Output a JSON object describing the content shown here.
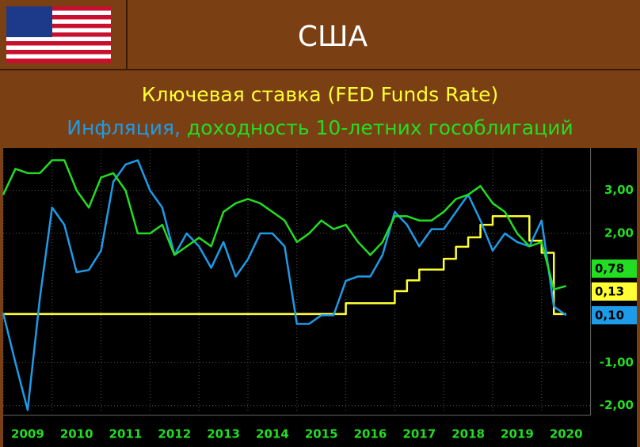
{
  "chart_data": {
    "type": "line",
    "title": "США",
    "x": [
      2009,
      2009.25,
      2009.5,
      2009.75,
      2010,
      2010.25,
      2010.5,
      2010.75,
      2011,
      2011.25,
      2011.5,
      2011.75,
      2012,
      2012.25,
      2012.5,
      2012.75,
      2013,
      2013.25,
      2013.5,
      2013.75,
      2014,
      2014.25,
      2014.5,
      2014.75,
      2015,
      2015.25,
      2015.5,
      2015.75,
      2016,
      2016.25,
      2016.5,
      2016.75,
      2017,
      2017.25,
      2017.5,
      2017.75,
      2018,
      2018.25,
      2018.5,
      2018.75,
      2019,
      2019.25,
      2019.5,
      2019.75,
      2020,
      2020.25,
      2020.5
    ],
    "series": [
      {
        "name": "Ключевая ставка (FED Funds Rate)",
        "color": "#ffff33",
        "steps": true,
        "last_label": "0,13",
        "values": [
          0.13,
          0.13,
          0.13,
          0.13,
          0.13,
          0.13,
          0.13,
          0.13,
          0.13,
          0.13,
          0.13,
          0.13,
          0.13,
          0.13,
          0.13,
          0.13,
          0.13,
          0.13,
          0.13,
          0.13,
          0.13,
          0.13,
          0.13,
          0.13,
          0.13,
          0.13,
          0.13,
          0.13,
          0.38,
          0.38,
          0.38,
          0.38,
          0.66,
          0.91,
          1.16,
          1.16,
          1.41,
          1.69,
          1.91,
          2.2,
          2.4,
          2.4,
          2.4,
          1.83,
          1.55,
          0.13,
          0.13
        ]
      },
      {
        "name": "Инфляция,",
        "color": "#1e9be8",
        "steps": false,
        "last_label": "0,10",
        "values": [
          0.15,
          -1.0,
          -2.1,
          0.5,
          2.6,
          2.2,
          1.1,
          1.15,
          1.6,
          3.2,
          3.6,
          3.7,
          3.0,
          2.6,
          1.5,
          2.0,
          1.7,
          1.2,
          1.8,
          1.0,
          1.4,
          2.0,
          2.0,
          1.7,
          -0.1,
          -0.1,
          0.1,
          0.1,
          0.9,
          1.0,
          1.0,
          1.5,
          2.5,
          2.2,
          1.7,
          2.1,
          2.1,
          2.5,
          2.9,
          2.3,
          1.6,
          2.0,
          1.8,
          1.7,
          2.3,
          0.3,
          0.1
        ]
      },
      {
        "name": "доходность 10-летних гособлигаций",
        "color": "#22dd22",
        "steps": false,
        "last_label": "0,78",
        "values": [
          2.9,
          3.5,
          3.4,
          3.4,
          3.7,
          3.7,
          3.0,
          2.6,
          3.3,
          3.4,
          3.0,
          2.0,
          2.0,
          2.2,
          1.5,
          1.7,
          1.9,
          1.7,
          2.5,
          2.7,
          2.8,
          2.7,
          2.5,
          2.3,
          1.8,
          2.0,
          2.3,
          2.1,
          2.2,
          1.8,
          1.5,
          1.8,
          2.4,
          2.4,
          2.3,
          2.3,
          2.5,
          2.8,
          2.9,
          3.1,
          2.7,
          2.5,
          2.0,
          1.7,
          1.8,
          0.7,
          0.78
        ]
      }
    ],
    "xlim": [
      2009,
      2021
    ],
    "xticks": [
      2009,
      2010,
      2011,
      2012,
      2013,
      2014,
      2015,
      2016,
      2017,
      2018,
      2019,
      2020
    ],
    "ylim": [
      -2.17,
      3.93
    ],
    "yticks": [
      {
        "value": 3,
        "label": "3,00"
      },
      {
        "value": 2,
        "label": "2,00"
      },
      {
        "value": -1,
        "label": "-1,00"
      },
      {
        "value": -2,
        "label": "-2,00"
      }
    ],
    "grid": true
  }
}
